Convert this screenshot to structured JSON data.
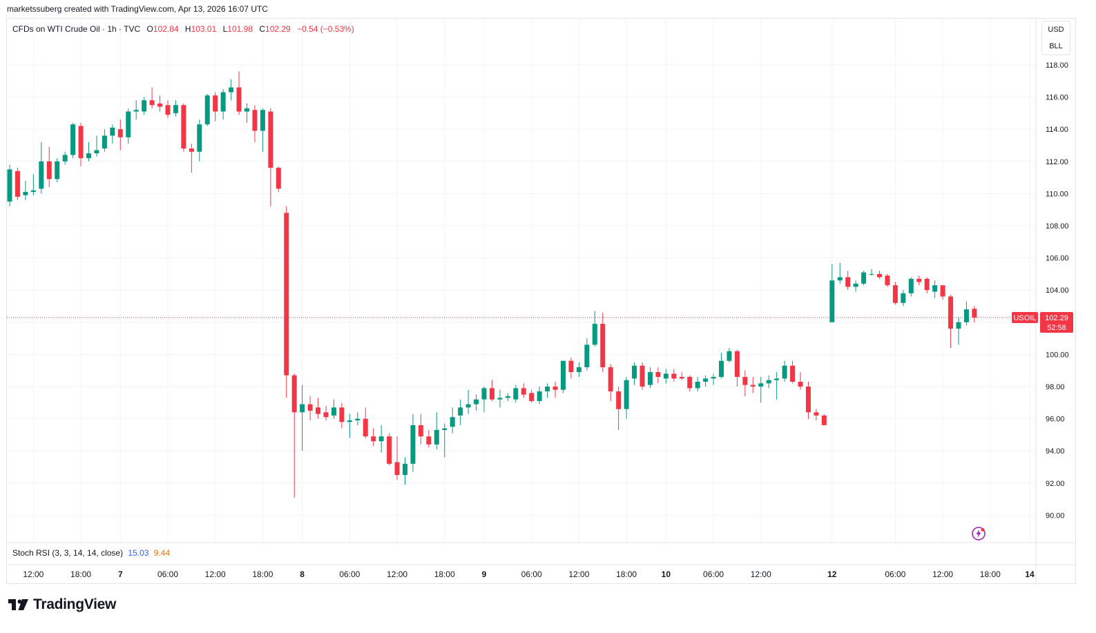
{
  "credit": "marketssuberg created with TradingView.com, Apr 13, 2026 16:07 UTC",
  "legend": {
    "symbol": "CFDs on WTI Crude Oil · 1h · TVC",
    "o_label": "O",
    "o": "102.84",
    "h_label": "H",
    "h": "103.01",
    "l_label": "L",
    "l": "101.98",
    "c_label": "C",
    "c": "102.29",
    "change": "−0.54 (−0.53%)"
  },
  "unit": {
    "currency": "USD",
    "unit": "BLL"
  },
  "price_label": {
    "ticker": "USOIL",
    "price": "102.29",
    "countdown": "52:58"
  },
  "indicator": {
    "name": "Stoch RSI (3, 3, 14, 14, close)",
    "k": "15.03",
    "d": "9.44"
  },
  "brand": {
    "name": "TradingView",
    "logo_icon": "tradingview-logo-icon"
  },
  "colors": {
    "up": "#089981",
    "down": "#f23645",
    "grid": "#f0f3fa",
    "axis_text": "#131722"
  },
  "chart_data": {
    "type": "candlestick",
    "title": "CFDs on WTI Crude Oil · 1h · TVC",
    "ylim": [
      89,
      119.5
    ],
    "y_ticks": [
      "90.00",
      "92.00",
      "94.00",
      "96.00",
      "98.00",
      "100.00",
      "102.00",
      "104.00",
      "106.00",
      "108.00",
      "110.00",
      "112.00",
      "114.00",
      "116.00",
      "118.00"
    ],
    "x_ticks": [
      {
        "label": "12:00",
        "i": 3
      },
      {
        "label": "18:00",
        "i": 9
      },
      {
        "label": "7",
        "i": 14
      },
      {
        "label": "06:00",
        "i": 20
      },
      {
        "label": "12:00",
        "i": 26
      },
      {
        "label": "18:00",
        "i": 32
      },
      {
        "label": "8",
        "i": 37
      },
      {
        "label": "06:00",
        "i": 43
      },
      {
        "label": "12:00",
        "i": 49
      },
      {
        "label": "18:00",
        "i": 55
      },
      {
        "label": "9",
        "i": 60
      },
      {
        "label": "06:00",
        "i": 66
      },
      {
        "label": "12:00",
        "i": 72
      },
      {
        "label": "18:00",
        "i": 78
      },
      {
        "label": "10",
        "i": 83
      },
      {
        "label": "06:00",
        "i": 89
      },
      {
        "label": "12:00",
        "i": 95
      },
      {
        "label": "12",
        "i": 104
      },
      {
        "label": "06:00",
        "i": 112
      },
      {
        "label": "12:00",
        "i": 118
      },
      {
        "label": "18:00",
        "i": 124
      },
      {
        "label": "14",
        "i": 129
      }
    ],
    "grid": true,
    "last_price": 102.29,
    "candles": [
      {
        "i": 0,
        "o": 109.5,
        "h": 111.8,
        "l": 109.2,
        "c": 111.5
      },
      {
        "i": 1,
        "o": 111.4,
        "h": 111.6,
        "l": 109.6,
        "c": 109.8
      },
      {
        "i": 2,
        "o": 109.9,
        "h": 110.8,
        "l": 109.6,
        "c": 110.1
      },
      {
        "i": 3,
        "o": 110.1,
        "h": 111.2,
        "l": 109.9,
        "c": 110.2
      },
      {
        "i": 4,
        "o": 110.3,
        "h": 113.2,
        "l": 110.0,
        "c": 112.0
      },
      {
        "i": 5,
        "o": 112.0,
        "h": 112.9,
        "l": 110.4,
        "c": 110.9
      },
      {
        "i": 6,
        "o": 110.9,
        "h": 112.2,
        "l": 110.7,
        "c": 112.0
      },
      {
        "i": 7,
        "o": 112.0,
        "h": 112.6,
        "l": 111.8,
        "c": 112.4
      },
      {
        "i": 8,
        "o": 112.4,
        "h": 114.4,
        "l": 112.2,
        "c": 114.3
      },
      {
        "i": 9,
        "o": 114.2,
        "h": 114.4,
        "l": 111.7,
        "c": 112.2
      },
      {
        "i": 10,
        "o": 112.2,
        "h": 113.2,
        "l": 112.0,
        "c": 112.5
      },
      {
        "i": 11,
        "o": 112.5,
        "h": 113.6,
        "l": 112.3,
        "c": 112.7
      },
      {
        "i": 12,
        "o": 112.8,
        "h": 114.0,
        "l": 112.6,
        "c": 113.6
      },
      {
        "i": 13,
        "o": 113.6,
        "h": 114.3,
        "l": 113.1,
        "c": 114.1
      },
      {
        "i": 14,
        "o": 114.0,
        "h": 114.6,
        "l": 112.7,
        "c": 113.5
      },
      {
        "i": 15,
        "o": 113.5,
        "h": 115.3,
        "l": 113.1,
        "c": 115.1
      },
      {
        "i": 16,
        "o": 115.1,
        "h": 115.8,
        "l": 114.6,
        "c": 115.2
      },
      {
        "i": 17,
        "o": 115.1,
        "h": 116.0,
        "l": 114.9,
        "c": 115.8
      },
      {
        "i": 18,
        "o": 115.8,
        "h": 116.6,
        "l": 115.3,
        "c": 115.5
      },
      {
        "i": 19,
        "o": 115.6,
        "h": 116.1,
        "l": 115.1,
        "c": 115.4
      },
      {
        "i": 20,
        "o": 115.5,
        "h": 115.8,
        "l": 114.7,
        "c": 114.9
      },
      {
        "i": 21,
        "o": 115.0,
        "h": 115.8,
        "l": 114.8,
        "c": 115.5
      },
      {
        "i": 22,
        "o": 115.5,
        "h": 115.6,
        "l": 112.6,
        "c": 112.8
      },
      {
        "i": 23,
        "o": 112.8,
        "h": 113.1,
        "l": 111.3,
        "c": 112.6
      },
      {
        "i": 24,
        "o": 112.6,
        "h": 114.6,
        "l": 112.0,
        "c": 114.3
      },
      {
        "i": 25,
        "o": 114.3,
        "h": 116.2,
        "l": 114.2,
        "c": 116.1
      },
      {
        "i": 26,
        "o": 116.1,
        "h": 116.3,
        "l": 114.5,
        "c": 115.1
      },
      {
        "i": 27,
        "o": 115.1,
        "h": 116.5,
        "l": 114.6,
        "c": 116.3
      },
      {
        "i": 28,
        "o": 116.3,
        "h": 117.1,
        "l": 115.8,
        "c": 116.6
      },
      {
        "i": 29,
        "o": 116.6,
        "h": 117.6,
        "l": 114.9,
        "c": 115.1
      },
      {
        "i": 30,
        "o": 115.1,
        "h": 115.6,
        "l": 114.4,
        "c": 115.3
      },
      {
        "i": 31,
        "o": 115.2,
        "h": 115.5,
        "l": 113.2,
        "c": 113.9
      },
      {
        "i": 32,
        "o": 113.9,
        "h": 115.3,
        "l": 112.6,
        "c": 115.2
      },
      {
        "i": 33,
        "o": 115.1,
        "h": 115.3,
        "l": 109.2,
        "c": 111.6
      },
      {
        "i": 34,
        "o": 111.6,
        "h": 111.7,
        "l": 110.1,
        "c": 110.3
      },
      {
        "i": 35,
        "o": 108.8,
        "h": 109.2,
        "l": 97.3,
        "c": 98.7
      },
      {
        "i": 36,
        "o": 98.7,
        "h": 98.8,
        "l": 91.1,
        "c": 96.4
      },
      {
        "i": 37,
        "o": 96.4,
        "h": 98.1,
        "l": 94.0,
        "c": 96.9
      },
      {
        "i": 38,
        "o": 96.9,
        "h": 97.4,
        "l": 95.9,
        "c": 96.5
      },
      {
        "i": 39,
        "o": 96.7,
        "h": 97.3,
        "l": 96.0,
        "c": 96.3
      },
      {
        "i": 40,
        "o": 96.4,
        "h": 96.8,
        "l": 95.9,
        "c": 96.1
      },
      {
        "i": 41,
        "o": 96.2,
        "h": 97.2,
        "l": 96.0,
        "c": 96.7
      },
      {
        "i": 42,
        "o": 96.7,
        "h": 97.0,
        "l": 95.4,
        "c": 95.8
      },
      {
        "i": 43,
        "o": 95.8,
        "h": 96.3,
        "l": 94.8,
        "c": 95.9
      },
      {
        "i": 44,
        "o": 95.9,
        "h": 96.4,
        "l": 95.6,
        "c": 96.0
      },
      {
        "i": 45,
        "o": 96.0,
        "h": 96.7,
        "l": 94.8,
        "c": 94.9
      },
      {
        "i": 46,
        "o": 94.9,
        "h": 95.4,
        "l": 94.3,
        "c": 94.6
      },
      {
        "i": 47,
        "o": 94.6,
        "h": 95.6,
        "l": 93.9,
        "c": 94.9
      },
      {
        "i": 48,
        "o": 94.9,
        "h": 95.1,
        "l": 93.1,
        "c": 93.2
      },
      {
        "i": 49,
        "o": 93.3,
        "h": 94.9,
        "l": 92.2,
        "c": 92.5
      },
      {
        "i": 50,
        "o": 92.5,
        "h": 93.6,
        "l": 91.9,
        "c": 93.2
      },
      {
        "i": 51,
        "o": 93.2,
        "h": 96.3,
        "l": 92.7,
        "c": 95.6
      },
      {
        "i": 52,
        "o": 95.6,
        "h": 96.3,
        "l": 94.4,
        "c": 94.9
      },
      {
        "i": 53,
        "o": 94.9,
        "h": 95.3,
        "l": 94.2,
        "c": 94.4
      },
      {
        "i": 54,
        "o": 94.4,
        "h": 96.4,
        "l": 94.1,
        "c": 95.3
      },
      {
        "i": 55,
        "o": 95.3,
        "h": 95.7,
        "l": 93.6,
        "c": 95.4
      },
      {
        "i": 56,
        "o": 95.5,
        "h": 96.7,
        "l": 95.1,
        "c": 96.1
      },
      {
        "i": 57,
        "o": 96.2,
        "h": 97.2,
        "l": 95.6,
        "c": 96.7
      },
      {
        "i": 58,
        "o": 96.7,
        "h": 97.8,
        "l": 96.3,
        "c": 96.9
      },
      {
        "i": 59,
        "o": 96.9,
        "h": 97.5,
        "l": 96.5,
        "c": 97.2
      },
      {
        "i": 60,
        "o": 97.2,
        "h": 98.0,
        "l": 96.4,
        "c": 97.9
      },
      {
        "i": 61,
        "o": 97.9,
        "h": 98.4,
        "l": 97.1,
        "c": 97.2
      },
      {
        "i": 62,
        "o": 97.2,
        "h": 97.8,
        "l": 96.7,
        "c": 97.3
      },
      {
        "i": 63,
        "o": 97.3,
        "h": 97.6,
        "l": 97.1,
        "c": 97.4
      },
      {
        "i": 64,
        "o": 97.2,
        "h": 98.1,
        "l": 97.0,
        "c": 97.9
      },
      {
        "i": 65,
        "o": 97.9,
        "h": 98.2,
        "l": 97.3,
        "c": 97.5
      },
      {
        "i": 66,
        "o": 97.6,
        "h": 97.8,
        "l": 97.0,
        "c": 97.1
      },
      {
        "i": 67,
        "o": 97.1,
        "h": 98.0,
        "l": 96.9,
        "c": 97.7
      },
      {
        "i": 68,
        "o": 97.7,
        "h": 98.2,
        "l": 97.3,
        "c": 98.0
      },
      {
        "i": 69,
        "o": 98.0,
        "h": 98.3,
        "l": 97.3,
        "c": 97.8
      },
      {
        "i": 70,
        "o": 97.8,
        "h": 99.6,
        "l": 97.6,
        "c": 99.6
      },
      {
        "i": 71,
        "o": 99.6,
        "h": 99.8,
        "l": 98.5,
        "c": 98.9
      },
      {
        "i": 72,
        "o": 98.9,
        "h": 99.5,
        "l": 98.6,
        "c": 99.2
      },
      {
        "i": 73,
        "o": 99.2,
        "h": 101.0,
        "l": 99.0,
        "c": 100.6
      },
      {
        "i": 74,
        "o": 100.6,
        "h": 102.7,
        "l": 100.5,
        "c": 101.9
      },
      {
        "i": 75,
        "o": 101.9,
        "h": 102.6,
        "l": 98.9,
        "c": 99.2
      },
      {
        "i": 76,
        "o": 99.2,
        "h": 99.4,
        "l": 97.1,
        "c": 97.7
      },
      {
        "i": 77,
        "o": 97.7,
        "h": 98.0,
        "l": 95.3,
        "c": 96.6
      },
      {
        "i": 78,
        "o": 96.6,
        "h": 98.6,
        "l": 96.0,
        "c": 98.4
      },
      {
        "i": 79,
        "o": 98.5,
        "h": 99.5,
        "l": 98.1,
        "c": 99.3
      },
      {
        "i": 80,
        "o": 99.3,
        "h": 99.5,
        "l": 97.8,
        "c": 98.0
      },
      {
        "i": 81,
        "o": 98.1,
        "h": 99.2,
        "l": 97.9,
        "c": 98.9
      },
      {
        "i": 82,
        "o": 98.9,
        "h": 99.2,
        "l": 98.2,
        "c": 98.6
      },
      {
        "i": 83,
        "o": 98.5,
        "h": 99.1,
        "l": 98.2,
        "c": 98.8
      },
      {
        "i": 84,
        "o": 98.8,
        "h": 99.1,
        "l": 98.3,
        "c": 98.5
      },
      {
        "i": 85,
        "o": 98.6,
        "h": 98.9,
        "l": 98.4,
        "c": 98.5
      },
      {
        "i": 86,
        "o": 98.6,
        "h": 98.7,
        "l": 97.7,
        "c": 97.9
      },
      {
        "i": 87,
        "o": 97.9,
        "h": 98.6,
        "l": 97.7,
        "c": 98.3
      },
      {
        "i": 88,
        "o": 98.3,
        "h": 98.7,
        "l": 98.0,
        "c": 98.5
      },
      {
        "i": 89,
        "o": 98.5,
        "h": 98.8,
        "l": 98.1,
        "c": 98.6
      },
      {
        "i": 90,
        "o": 98.6,
        "h": 100.1,
        "l": 98.5,
        "c": 99.6
      },
      {
        "i": 91,
        "o": 99.6,
        "h": 100.4,
        "l": 99.5,
        "c": 100.2
      },
      {
        "i": 92,
        "o": 100.2,
        "h": 100.3,
        "l": 98.0,
        "c": 98.6
      },
      {
        "i": 93,
        "o": 98.6,
        "h": 99.0,
        "l": 97.4,
        "c": 98.1
      },
      {
        "i": 94,
        "o": 98.1,
        "h": 98.6,
        "l": 97.6,
        "c": 98.0
      },
      {
        "i": 95,
        "o": 98.0,
        "h": 98.6,
        "l": 97.0,
        "c": 98.2
      },
      {
        "i": 96,
        "o": 98.2,
        "h": 98.7,
        "l": 97.9,
        "c": 98.4
      },
      {
        "i": 97,
        "o": 98.4,
        "h": 98.9,
        "l": 97.2,
        "c": 98.5
      },
      {
        "i": 98,
        "o": 98.5,
        "h": 99.6,
        "l": 98.3,
        "c": 99.3
      },
      {
        "i": 99,
        "o": 99.3,
        "h": 99.6,
        "l": 98.2,
        "c": 98.3
      },
      {
        "i": 100,
        "o": 98.3,
        "h": 98.9,
        "l": 97.8,
        "c": 98.0
      },
      {
        "i": 101,
        "o": 98.0,
        "h": 98.3,
        "l": 96.0,
        "c": 96.4
      },
      {
        "i": 102,
        "o": 96.4,
        "h": 96.6,
        "l": 95.9,
        "c": 96.2
      },
      {
        "i": 103,
        "o": 96.2,
        "h": 96.3,
        "l": 95.6,
        "c": 95.6
      },
      {
        "i": 104,
        "o": 102.0,
        "h": 105.6,
        "l": 102.0,
        "c": 104.6
      },
      {
        "i": 105,
        "o": 104.6,
        "h": 105.7,
        "l": 104.4,
        "c": 104.8
      },
      {
        "i": 106,
        "o": 104.8,
        "h": 105.2,
        "l": 104.0,
        "c": 104.2
      },
      {
        "i": 107,
        "o": 104.2,
        "h": 104.6,
        "l": 103.9,
        "c": 104.4
      },
      {
        "i": 108,
        "o": 104.4,
        "h": 105.2,
        "l": 104.3,
        "c": 105.1
      },
      {
        "i": 109,
        "o": 105.0,
        "h": 105.3,
        "l": 104.9,
        "c": 105.0
      },
      {
        "i": 110,
        "o": 105.0,
        "h": 105.2,
        "l": 104.7,
        "c": 104.8
      },
      {
        "i": 111,
        "o": 104.9,
        "h": 105.0,
        "l": 104.2,
        "c": 104.3
      },
      {
        "i": 112,
        "o": 104.3,
        "h": 104.5,
        "l": 103.1,
        "c": 103.2
      },
      {
        "i": 113,
        "o": 103.2,
        "h": 104.0,
        "l": 103.0,
        "c": 103.8
      },
      {
        "i": 114,
        "o": 103.8,
        "h": 104.8,
        "l": 103.6,
        "c": 104.7
      },
      {
        "i": 115,
        "o": 104.7,
        "h": 104.9,
        "l": 104.3,
        "c": 104.5
      },
      {
        "i": 116,
        "o": 104.7,
        "h": 104.8,
        "l": 103.8,
        "c": 104.0
      },
      {
        "i": 117,
        "o": 103.9,
        "h": 104.6,
        "l": 103.5,
        "c": 104.3
      },
      {
        "i": 118,
        "o": 104.3,
        "h": 104.3,
        "l": 103.4,
        "c": 103.6
      },
      {
        "i": 119,
        "o": 103.6,
        "h": 103.7,
        "l": 100.4,
        "c": 101.6
      },
      {
        "i": 120,
        "o": 101.6,
        "h": 102.3,
        "l": 100.6,
        "c": 102.0
      },
      {
        "i": 121,
        "o": 102.0,
        "h": 103.3,
        "l": 101.8,
        "c": 102.8
      },
      {
        "i": 122,
        "o": 102.84,
        "h": 103.01,
        "l": 101.98,
        "c": 102.29
      }
    ]
  }
}
